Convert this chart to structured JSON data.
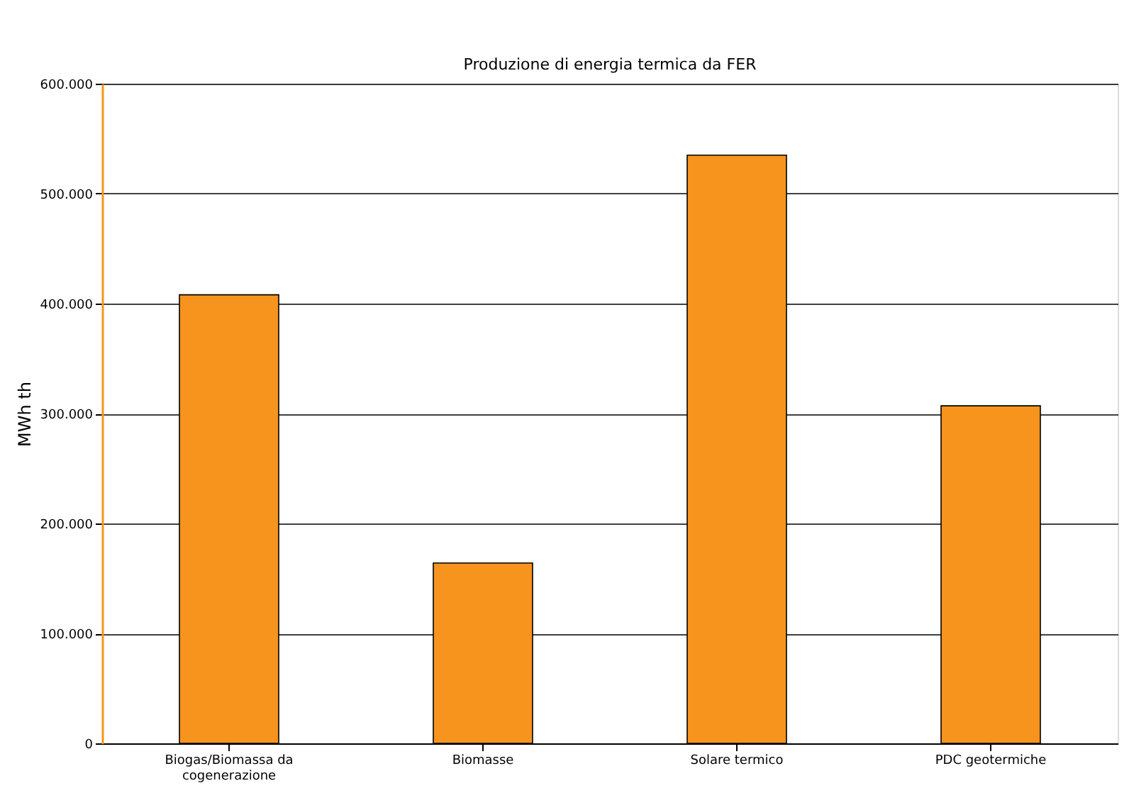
{
  "chart_data": {
    "type": "bar",
    "title": "Produzione di energia termica da FER",
    "ylabel": "MWh th",
    "categories": [
      "Biogas/Biomassa da cogenerazione",
      "Biomasse",
      "Solare termico",
      "PDC geotermiche"
    ],
    "values": [
      408000,
      164000,
      535000,
      307000
    ],
    "color": "#f7941d",
    "ylim": [
      0,
      600000
    ],
    "yticks": [
      0,
      {
        "value": 100000,
        "label": "100.000"
      },
      {
        "value": 200000,
        "label": "200.000"
      },
      {
        "value": 300000,
        "label": "300.000"
      },
      {
        "value": 400000,
        "label": "400.000"
      },
      {
        "value": 500000,
        "label": "500.000"
      },
      {
        "value": 600000,
        "label": "600.000"
      }
    ],
    "grid": "y"
  }
}
